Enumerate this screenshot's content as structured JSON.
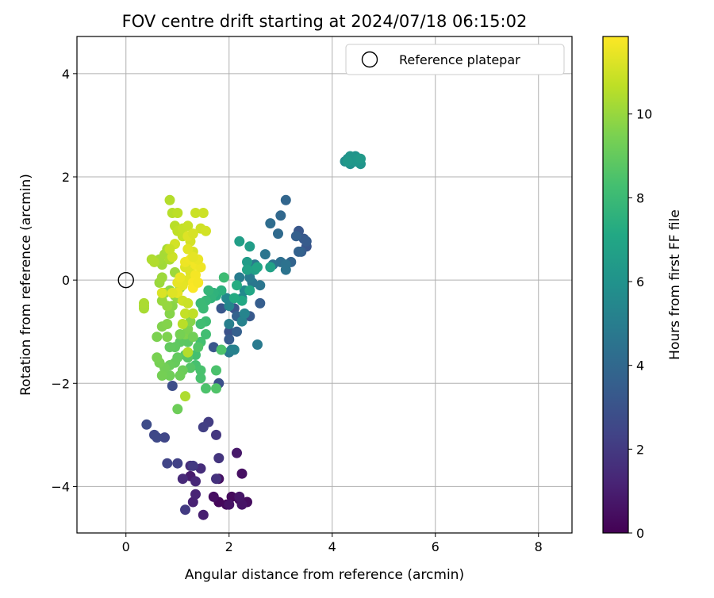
{
  "chart_data": {
    "type": "scatter",
    "title": "FOV centre drift starting at 2024/07/18 06:15:02",
    "xlabel": "Angular distance from reference (arcmin)",
    "ylabel": "Rotation from reference (arcmin)",
    "xlim": [
      -0.95,
      8.65
    ],
    "ylim": [
      -4.9,
      4.72
    ],
    "x_ticks": [
      "0",
      "2",
      "4",
      "6",
      "8"
    ],
    "y_ticks": [
      "−4",
      "−2",
      "0",
      "2",
      "4"
    ],
    "x_tick_values": [
      0,
      2,
      4,
      6,
      8
    ],
    "y_tick_values": [
      -4,
      -2,
      0,
      2,
      4
    ],
    "grid": true,
    "legend": {
      "label": "Reference platepar",
      "placement": "top-right",
      "x": 0,
      "y": 0
    },
    "colorbar": {
      "label": "Hours from first FF file",
      "colormap": "viridis",
      "range": [
        0,
        11.85
      ],
      "ticks": [
        "0",
        "2",
        "4",
        "6",
        "8",
        "10"
      ],
      "tick_values": [
        0,
        2,
        4,
        6,
        8,
        10
      ]
    },
    "series": [
      {
        "points": [
          [
            1.8,
            -4.3,
            0.2
          ],
          [
            1.95,
            -4.35,
            0.25
          ],
          [
            2.05,
            -4.2,
            0.3
          ],
          [
            2.2,
            -4.25,
            0.35
          ],
          [
            2.35,
            -4.3,
            0.4
          ],
          [
            1.7,
            -4.2,
            0.45
          ],
          [
            2.25,
            -3.75,
            0.5
          ],
          [
            1.8,
            -3.85,
            0.55
          ],
          [
            2.0,
            -4.35,
            0.6
          ],
          [
            2.25,
            -4.35,
            0.65
          ],
          [
            2.2,
            -4.2,
            0.7
          ],
          [
            2.15,
            -3.35,
            0.8
          ],
          [
            1.25,
            -3.8,
            0.9
          ],
          [
            1.5,
            -4.55,
            1.0
          ],
          [
            1.3,
            -4.3,
            1.1
          ],
          [
            1.35,
            -4.15,
            1.2
          ],
          [
            1.35,
            -3.9,
            1.3
          ],
          [
            1.1,
            -3.85,
            1.4
          ],
          [
            1.45,
            -3.65,
            1.5
          ],
          [
            1.25,
            -3.6,
            1.6
          ],
          [
            1.75,
            -3.85,
            1.7
          ],
          [
            1.8,
            -3.45,
            1.8
          ],
          [
            1.75,
            -3.0,
            1.9
          ],
          [
            1.3,
            -3.6,
            2.0
          ],
          [
            1.15,
            -4.45,
            2.05
          ],
          [
            1.6,
            -2.75,
            2.1
          ],
          [
            1.5,
            -2.85,
            2.2
          ],
          [
            1.0,
            -3.55,
            2.3
          ],
          [
            0.8,
            -3.55,
            2.4
          ],
          [
            0.75,
            -3.05,
            2.5
          ],
          [
            0.55,
            -3.0,
            2.55
          ],
          [
            0.6,
            -3.05,
            2.6
          ],
          [
            0.4,
            -2.8,
            2.7
          ],
          [
            0.9,
            -2.05,
            2.8
          ],
          [
            1.8,
            -2.0,
            2.9
          ],
          [
            2.0,
            -1.0,
            3.0
          ],
          [
            2.1,
            -0.55,
            3.1
          ],
          [
            1.85,
            -0.55,
            3.2
          ],
          [
            2.4,
            -0.7,
            3.3
          ],
          [
            2.0,
            -1.15,
            3.4
          ],
          [
            2.6,
            -0.45,
            3.5
          ],
          [
            2.15,
            -1.0,
            3.6
          ],
          [
            2.15,
            -0.7,
            3.7
          ],
          [
            1.7,
            -1.3,
            3.2
          ],
          [
            3.5,
            0.65,
            3.1
          ],
          [
            3.35,
            0.95,
            3.2
          ],
          [
            3.45,
            0.8,
            3.3
          ],
          [
            3.5,
            0.75,
            3.4
          ],
          [
            3.4,
            0.55,
            3.5
          ],
          [
            3.3,
            0.85,
            3.6
          ],
          [
            3.35,
            0.55,
            3.7
          ],
          [
            3.2,
            0.35,
            3.8
          ],
          [
            3.1,
            1.55,
            3.9
          ],
          [
            3.0,
            1.25,
            4.0
          ],
          [
            2.95,
            0.9,
            4.1
          ],
          [
            2.8,
            1.1,
            4.2
          ],
          [
            3.0,
            0.35,
            4.3
          ],
          [
            2.85,
            0.3,
            4.4
          ],
          [
            3.1,
            0.3,
            4.45
          ],
          [
            3.1,
            0.2,
            4.5
          ],
          [
            2.7,
            0.5,
            4.6
          ],
          [
            2.6,
            -0.1,
            4.65
          ],
          [
            2.45,
            -0.05,
            4.7
          ],
          [
            2.5,
            0.3,
            4.75
          ],
          [
            2.0,
            -1.4,
            4.8
          ],
          [
            2.55,
            -1.25,
            4.85
          ],
          [
            2.4,
            0.05,
            4.9
          ],
          [
            2.2,
            0.05,
            5.0
          ],
          [
            2.0,
            -0.85,
            5.05
          ],
          [
            2.05,
            -1.35,
            5.1
          ],
          [
            2.1,
            -1.35,
            5.15
          ],
          [
            2.25,
            -0.8,
            5.2
          ],
          [
            2.3,
            -0.65,
            5.3
          ],
          [
            2.0,
            -0.5,
            5.4
          ],
          [
            1.95,
            -0.35,
            5.5
          ],
          [
            2.25,
            -0.35,
            5.55
          ],
          [
            2.3,
            -0.2,
            5.6
          ],
          [
            4.25,
            2.3,
            5.8
          ],
          [
            4.3,
            2.35,
            5.85
          ],
          [
            4.35,
            2.25,
            5.9
          ],
          [
            4.4,
            2.35,
            5.95
          ],
          [
            4.45,
            2.4,
            6.0
          ],
          [
            4.5,
            2.3,
            6.05
          ],
          [
            4.55,
            2.25,
            6.1
          ],
          [
            4.35,
            2.4,
            6.15
          ],
          [
            4.45,
            2.3,
            6.2
          ],
          [
            4.5,
            2.35,
            6.25
          ],
          [
            4.3,
            2.3,
            6.3
          ],
          [
            4.55,
            2.35,
            6.35
          ],
          [
            2.35,
            0.35,
            6.5
          ],
          [
            2.4,
            0.65,
            6.55
          ],
          [
            2.2,
            0.75,
            6.6
          ],
          [
            2.5,
            0.2,
            6.7
          ],
          [
            2.8,
            0.25,
            6.75
          ],
          [
            2.35,
            0.2,
            6.8
          ],
          [
            2.55,
            0.25,
            6.9
          ],
          [
            2.4,
            -0.2,
            7.0
          ],
          [
            2.25,
            -0.4,
            7.1
          ],
          [
            2.1,
            -0.35,
            7.2
          ],
          [
            2.15,
            -0.1,
            7.3
          ],
          [
            1.75,
            -0.3,
            7.4
          ],
          [
            1.85,
            -0.2,
            7.5
          ],
          [
            1.7,
            -0.25,
            7.6
          ],
          [
            1.65,
            -0.35,
            7.7
          ],
          [
            1.6,
            -0.2,
            7.8
          ],
          [
            1.55,
            -0.4,
            7.9
          ],
          [
            1.45,
            -0.45,
            8.0
          ],
          [
            1.5,
            -0.55,
            8.0
          ],
          [
            1.9,
            0.05,
            8.1
          ],
          [
            1.55,
            -0.8,
            8.1
          ],
          [
            1.45,
            -0.85,
            8.2
          ],
          [
            1.55,
            -1.05,
            8.2
          ],
          [
            1.45,
            -1.2,
            8.3
          ],
          [
            1.35,
            -1.45,
            8.3
          ],
          [
            1.35,
            -1.65,
            8.35
          ],
          [
            1.45,
            -1.75,
            8.4
          ],
          [
            1.45,
            -1.9,
            8.4
          ],
          [
            1.75,
            -1.75,
            8.45
          ],
          [
            1.85,
            -1.35,
            8.5
          ],
          [
            1.55,
            -2.1,
            8.5
          ],
          [
            1.75,
            -2.1,
            8.55
          ],
          [
            1.4,
            -1.3,
            8.6
          ],
          [
            1.25,
            -1.7,
            8.65
          ],
          [
            1.2,
            -1.5,
            8.7
          ],
          [
            1.15,
            -1.45,
            8.75
          ],
          [
            1.2,
            -1.2,
            8.8
          ],
          [
            1.05,
            -1.2,
            8.85
          ],
          [
            0.95,
            -1.3,
            8.9
          ],
          [
            0.85,
            -1.3,
            8.95
          ],
          [
            1.0,
            -1.5,
            9.0
          ],
          [
            0.95,
            -1.6,
            9.05
          ],
          [
            0.85,
            -1.65,
            9.1
          ],
          [
            1.1,
            -1.75,
            9.15
          ],
          [
            1.05,
            -1.85,
            9.2
          ],
          [
            0.85,
            -1.85,
            9.25
          ],
          [
            0.75,
            -1.7,
            9.3
          ],
          [
            0.7,
            -1.85,
            9.35
          ],
          [
            0.65,
            -1.6,
            9.4
          ],
          [
            0.6,
            -1.5,
            9.45
          ],
          [
            0.6,
            -1.1,
            9.5
          ],
          [
            0.8,
            -1.1,
            9.55
          ],
          [
            0.7,
            -0.9,
            9.6
          ],
          [
            0.8,
            -0.85,
            9.65
          ],
          [
            0.85,
            -0.65,
            9.7
          ],
          [
            0.9,
            -0.5,
            9.75
          ],
          [
            0.95,
            -0.3,
            9.8
          ],
          [
            0.85,
            -0.2,
            9.85
          ],
          [
            0.75,
            -0.25,
            9.9
          ],
          [
            0.8,
            -0.5,
            9.95
          ],
          [
            0.7,
            -0.4,
            10.0
          ],
          [
            0.65,
            -0.05,
            10.05
          ],
          [
            0.7,
            0.05,
            10.1
          ],
          [
            0.7,
            0.3,
            10.15
          ],
          [
            0.65,
            0.4,
            10.2
          ],
          [
            0.75,
            0.5,
            10.25
          ],
          [
            0.8,
            0.6,
            10.3
          ],
          [
            0.85,
            0.4,
            10.35
          ],
          [
            1.0,
            -2.5,
            9.2
          ],
          [
            1.15,
            -1.05,
            9.6
          ],
          [
            1.2,
            -0.95,
            9.5
          ],
          [
            1.25,
            -0.8,
            9.7
          ],
          [
            1.05,
            -1.05,
            9.4
          ],
          [
            1.3,
            -1.1,
            9.3
          ],
          [
            1.0,
            -0.35,
            9.9
          ],
          [
            1.05,
            -0.15,
            10.0
          ],
          [
            0.95,
            0.15,
            10.1
          ],
          [
            0.35,
            -0.5,
            10.2
          ],
          [
            0.35,
            -0.55,
            10.3
          ],
          [
            0.35,
            -0.45,
            10.35
          ],
          [
            0.5,
            0.4,
            10.4
          ],
          [
            0.55,
            0.35,
            10.45
          ],
          [
            0.85,
            1.55,
            10.5
          ],
          [
            0.9,
            1.3,
            10.55
          ],
          [
            0.95,
            1.05,
            10.6
          ],
          [
            1.0,
            1.3,
            10.65
          ],
          [
            1.0,
            0.95,
            10.7
          ],
          [
            1.1,
            0.85,
            10.75
          ],
          [
            1.1,
            1.0,
            10.8
          ],
          [
            1.2,
            1.05,
            10.85
          ],
          [
            1.35,
            1.3,
            10.9
          ],
          [
            1.5,
            1.3,
            10.95
          ],
          [
            1.45,
            1.0,
            11.0
          ],
          [
            1.55,
            0.95,
            11.05
          ],
          [
            1.25,
            0.75,
            11.1
          ],
          [
            1.3,
            0.55,
            11.15
          ],
          [
            1.25,
            0.35,
            11.2
          ],
          [
            1.15,
            0.25,
            11.25
          ],
          [
            1.25,
            0.15,
            11.3
          ],
          [
            1.2,
            0.0,
            11.35
          ],
          [
            1.1,
            -0.1,
            11.4
          ],
          [
            1.0,
            -0.05,
            11.45
          ],
          [
            1.05,
            0.05,
            11.5
          ],
          [
            1.15,
            0.35,
            11.55
          ],
          [
            1.25,
            0.4,
            11.6
          ],
          [
            1.35,
            0.3,
            11.65
          ],
          [
            1.35,
            0.1,
            11.7
          ],
          [
            1.3,
            -0.05,
            11.75
          ],
          [
            1.3,
            -0.15,
            11.8
          ],
          [
            1.0,
            -0.25,
            11.45
          ],
          [
            0.9,
            -0.25,
            11.3
          ],
          [
            0.7,
            -0.25,
            11.2
          ],
          [
            1.1,
            -0.4,
            11.0
          ],
          [
            1.2,
            -0.45,
            10.9
          ],
          [
            1.15,
            -0.65,
            10.8
          ],
          [
            1.3,
            -0.65,
            10.7
          ],
          [
            1.1,
            -0.85,
            10.6
          ],
          [
            1.2,
            -1.4,
            10.5
          ],
          [
            1.15,
            -2.25,
            10.4
          ],
          [
            1.4,
            -0.05,
            11.7
          ],
          [
            1.45,
            0.25,
            11.6
          ],
          [
            1.4,
            0.4,
            11.5
          ],
          [
            1.3,
            0.45,
            11.4
          ],
          [
            1.2,
            0.6,
            11.35
          ],
          [
            1.2,
            0.85,
            11.25
          ],
          [
            1.3,
            0.9,
            11.15
          ],
          [
            0.95,
            0.7,
            11.05
          ],
          [
            0.9,
            0.45,
            10.95
          ],
          [
            0.85,
            0.6,
            10.85
          ]
        ]
      }
    ]
  }
}
